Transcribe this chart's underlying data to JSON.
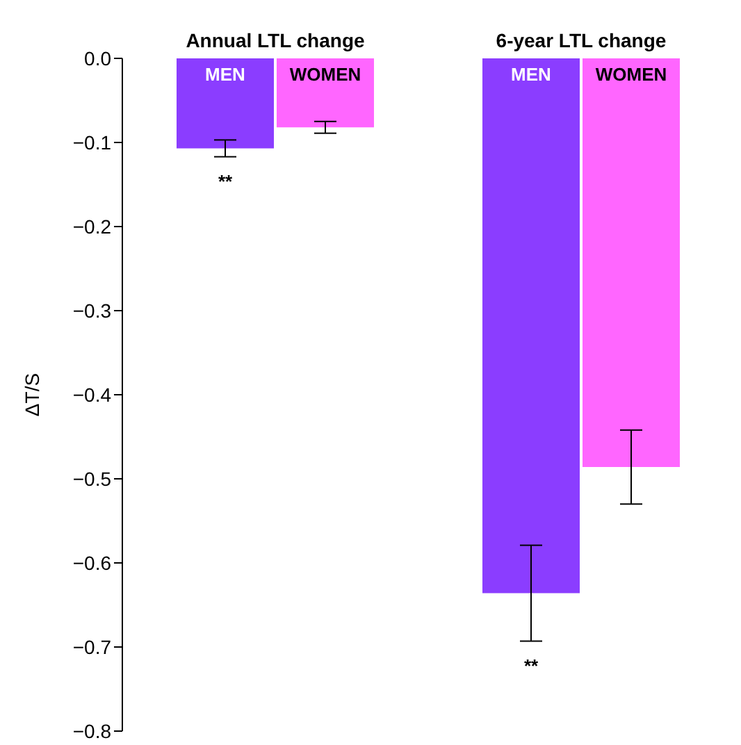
{
  "chart_data": {
    "type": "bar",
    "ylabel": "ΔT/S",
    "categories": [
      "Annual LTL change",
      "6-year LTL change"
    ],
    "series": [
      {
        "name": "MEN",
        "color": "#8b3dff",
        "values": [
          -0.107,
          -0.636
        ],
        "errors": [
          0.01,
          0.057
        ]
      },
      {
        "name": "WOMEN",
        "color": "#ff66ff",
        "values": [
          -0.082,
          -0.486
        ],
        "errors": [
          0.007,
          0.044
        ]
      }
    ],
    "ylim": [
      -0.8,
      0
    ],
    "yticks": [
      {
        "value": -0.8,
        "label": "−0.8"
      },
      {
        "value": -0.7,
        "label": "−0.7"
      },
      {
        "value": -0.6,
        "label": "−0.6"
      },
      {
        "value": -0.5,
        "label": "−0.5"
      },
      {
        "value": -0.4,
        "label": "−0.4"
      },
      {
        "value": -0.3,
        "label": "−0.3"
      },
      {
        "value": -0.2,
        "label": "−0.2"
      },
      {
        "value": -0.1,
        "label": "−0.1"
      },
      {
        "value": 0,
        "label": "0.0"
      }
    ],
    "annotations": [
      "**",
      "**"
    ],
    "grid": false,
    "legend": false
  }
}
